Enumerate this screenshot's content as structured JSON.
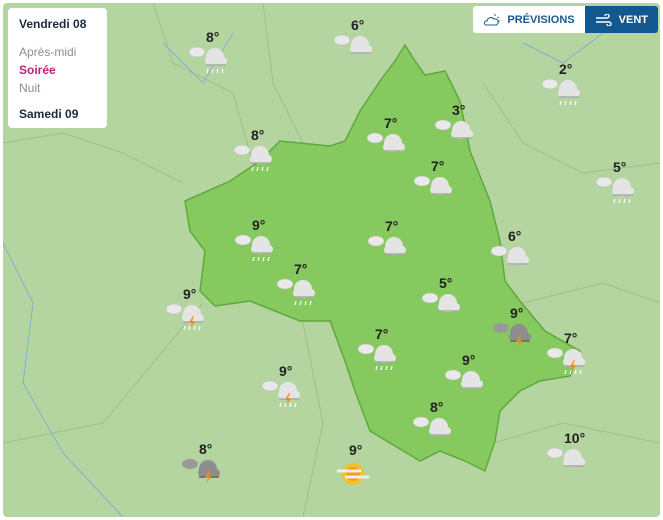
{
  "legend": {
    "day1": "Vendredi 08",
    "periods": [
      {
        "label": "Après-midi",
        "active": false
      },
      {
        "label": "Soirée",
        "active": true
      },
      {
        "label": "Nuit",
        "active": false
      }
    ],
    "day2": "Samedi 09"
  },
  "toggle": {
    "previsions_label": "PRÉVISIONS",
    "vent_label": "VENT",
    "active": "vent"
  },
  "colors": {
    "department": "#86c95f",
    "background": "#b5d5a0",
    "active_period": "#c4207a",
    "vent_button": "#10588f"
  },
  "markers": [
    {
      "temp": "8°",
      "icon": "cloud-rain"
    },
    {
      "temp": "6°",
      "icon": "cloud"
    },
    {
      "temp": "2°",
      "icon": "cloud-rain"
    },
    {
      "temp": "3°",
      "icon": "cloud"
    },
    {
      "temp": "7°",
      "icon": "cloud"
    },
    {
      "temp": "8°",
      "icon": "cloud-rain"
    },
    {
      "temp": "7°",
      "icon": "cloud"
    },
    {
      "temp": "5°",
      "icon": "cloud-rain"
    },
    {
      "temp": "9°",
      "icon": "cloud-rain"
    },
    {
      "temp": "7°",
      "icon": "cloud"
    },
    {
      "temp": "6°",
      "icon": "cloud"
    },
    {
      "temp": "7°",
      "icon": "cloud-rain"
    },
    {
      "temp": "5°",
      "icon": "cloud"
    },
    {
      "temp": "9°",
      "icon": "thunderstorm-rain"
    },
    {
      "temp": "9°",
      "icon": "thunderstorm"
    },
    {
      "temp": "7°",
      "icon": "cloud-rain"
    },
    {
      "temp": "7°",
      "icon": "thunderstorm-rain"
    },
    {
      "temp": "9°",
      "icon": "cloud"
    },
    {
      "temp": "9°",
      "icon": "thunderstorm-rain"
    },
    {
      "temp": "8°",
      "icon": "cloud"
    },
    {
      "temp": "10°",
      "icon": "cloud"
    },
    {
      "temp": "8°",
      "icon": "thunderstorm"
    },
    {
      "temp": "9°",
      "icon": "sun-fog"
    }
  ]
}
